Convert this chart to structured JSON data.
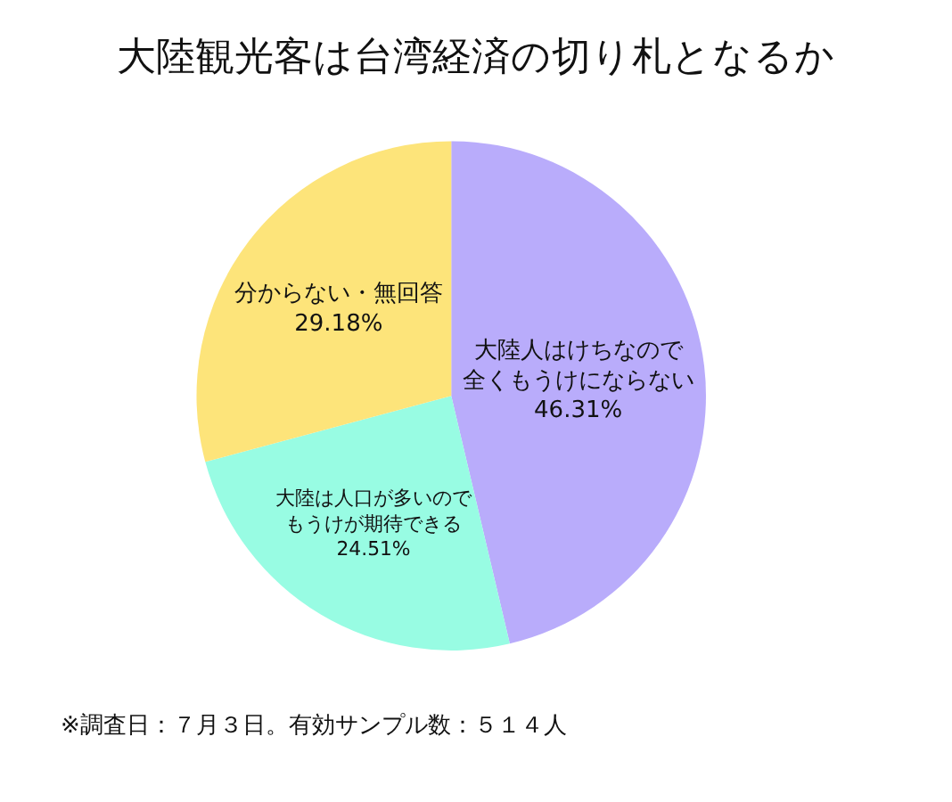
{
  "chart_data": {
    "type": "pie",
    "title": "大陸観光客は台湾経済の切り札となるか",
    "categories": [
      "大陸人はけちなので全くもうけにならない",
      "大陸は人口が多いのでもうけが期待できる",
      "分からない・無回答"
    ],
    "values": [
      46.31,
      24.51,
      29.18
    ],
    "value_labels": [
      "46.31%",
      "24.51%",
      "29.18%"
    ],
    "colors": [
      "#b9acfb",
      "#98fce3",
      "#fde47a"
    ],
    "legend": false,
    "annotations": [
      "※調査日：７月３日。有効サンプル数：５１４人"
    ]
  }
}
